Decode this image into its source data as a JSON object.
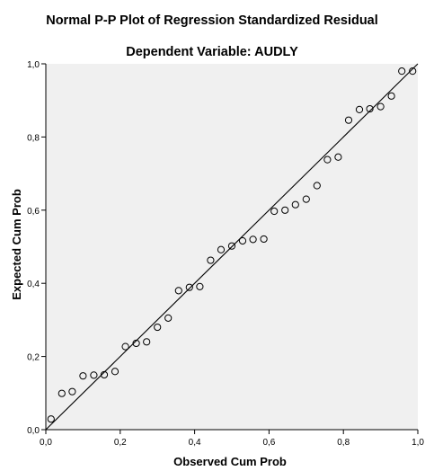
{
  "chart_data": {
    "type": "scatter",
    "title": "Normal P-P Plot of Regression Standardized Residual",
    "subtitle": "Dependent Variable: AUDLY",
    "xlabel": "Observed Cum Prob",
    "ylabel": "Expected Cum Prob",
    "xlim": [
      0,
      1
    ],
    "ylim": [
      0,
      1
    ],
    "xticks": [
      "0,0",
      "0,2",
      "0,4",
      "0,6",
      "0,8",
      "1,0"
    ],
    "yticks": [
      "0,0",
      "0,2",
      "0,4",
      "0,6",
      "0,8",
      "1,0"
    ],
    "grid": false,
    "reference_line": {
      "from": [
        0,
        0
      ],
      "to": [
        1,
        1
      ]
    },
    "marker": "open-circle",
    "colors": {
      "plot_background": "#f0f0f0",
      "axis": "#000000",
      "points": "#000000",
      "reference_line": "#000000"
    },
    "points": [
      {
        "x": 0.014,
        "y": 0.029
      },
      {
        "x": 0.043,
        "y": 0.099
      },
      {
        "x": 0.071,
        "y": 0.104
      },
      {
        "x": 0.1,
        "y": 0.147
      },
      {
        "x": 0.129,
        "y": 0.149
      },
      {
        "x": 0.157,
        "y": 0.15
      },
      {
        "x": 0.186,
        "y": 0.159
      },
      {
        "x": 0.214,
        "y": 0.227
      },
      {
        "x": 0.243,
        "y": 0.236
      },
      {
        "x": 0.271,
        "y": 0.24
      },
      {
        "x": 0.3,
        "y": 0.28
      },
      {
        "x": 0.329,
        "y": 0.305
      },
      {
        "x": 0.357,
        "y": 0.38
      },
      {
        "x": 0.386,
        "y": 0.389
      },
      {
        "x": 0.414,
        "y": 0.391
      },
      {
        "x": 0.443,
        "y": 0.463
      },
      {
        "x": 0.471,
        "y": 0.492
      },
      {
        "x": 0.5,
        "y": 0.502
      },
      {
        "x": 0.529,
        "y": 0.516
      },
      {
        "x": 0.557,
        "y": 0.52
      },
      {
        "x": 0.586,
        "y": 0.521
      },
      {
        "x": 0.614,
        "y": 0.597
      },
      {
        "x": 0.643,
        "y": 0.6
      },
      {
        "x": 0.671,
        "y": 0.615
      },
      {
        "x": 0.7,
        "y": 0.63
      },
      {
        "x": 0.729,
        "y": 0.667
      },
      {
        "x": 0.757,
        "y": 0.738
      },
      {
        "x": 0.786,
        "y": 0.745
      },
      {
        "x": 0.814,
        "y": 0.846
      },
      {
        "x": 0.843,
        "y": 0.875
      },
      {
        "x": 0.871,
        "y": 0.877
      },
      {
        "x": 0.9,
        "y": 0.883
      },
      {
        "x": 0.929,
        "y": 0.912
      },
      {
        "x": 0.957,
        "y": 0.98
      },
      {
        "x": 0.986,
        "y": 0.98
      }
    ]
  }
}
